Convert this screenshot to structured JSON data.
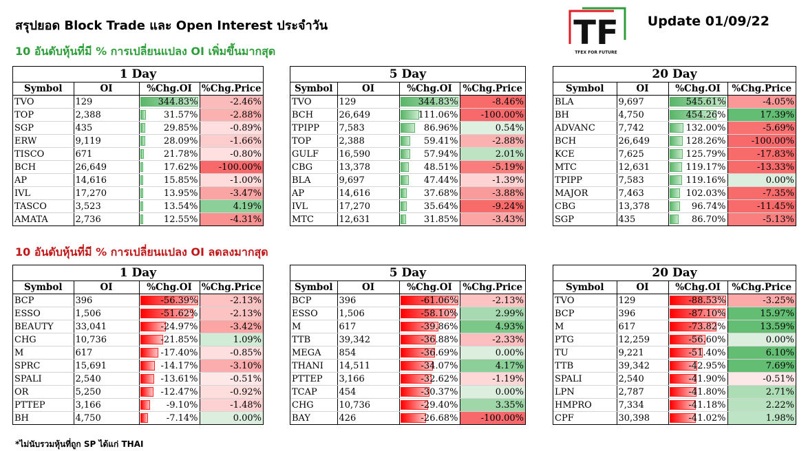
{
  "header": {
    "title": "สรุปยอด Block Trade และ Open Interest ประจำวัน",
    "update": "Update 01/09/22",
    "logo_text": "TF",
    "logo_sub": "TFEX FOR FUTURE"
  },
  "sections": {
    "increase_title": "10 อันดับหุ้นที่มี % การเปลี่ยนแปลง OI เพิ่มขึ้นมากสุด",
    "decrease_title": "10 อันดับหุ้นที่มี % การเปลี่ยนแปลง OI ลดลงมากสุด"
  },
  "columns": {
    "symbol": "Symbol",
    "oi": "OI",
    "chg_oi": "%Chg.OI",
    "chg_price": "%Chg.Price"
  },
  "footnote": "*ไม่นับรวมหุ้นที่ถูก SP ได้แก่ THAI",
  "colors": {
    "green": "#59b668",
    "red": "#ff0000",
    "title_green": "#2e9e3a",
    "title_red": "#c01818"
  },
  "tables": {
    "inc_1d": {
      "title": "1 Day",
      "rows": [
        {
          "symbol": "TVO",
          "oi": "129",
          "chg_oi": "344.83%",
          "chg_oi_value": 344.83,
          "chg_price": "-2.46%",
          "price_value": -2.46
        },
        {
          "symbol": "TOP",
          "oi": "2,388",
          "chg_oi": "31.57%",
          "chg_oi_value": 31.57,
          "chg_price": "-2.88%",
          "price_value": -2.88
        },
        {
          "symbol": "SGP",
          "oi": "435",
          "chg_oi": "29.85%",
          "chg_oi_value": 29.85,
          "chg_price": "-0.89%",
          "price_value": -0.89
        },
        {
          "symbol": "ERW",
          "oi": "9,119",
          "chg_oi": "28.09%",
          "chg_oi_value": 28.09,
          "chg_price": "-1.66%",
          "price_value": -1.66
        },
        {
          "symbol": "TISCO",
          "oi": "671",
          "chg_oi": "21.78%",
          "chg_oi_value": 21.78,
          "chg_price": "-0.80%",
          "price_value": -0.8
        },
        {
          "symbol": "BCH",
          "oi": "26,649",
          "chg_oi": "17.62%",
          "chg_oi_value": 17.62,
          "chg_price": "-100.00%",
          "price_value": -100.0
        },
        {
          "symbol": "AP",
          "oi": "14,616",
          "chg_oi": "15.85%",
          "chg_oi_value": 15.85,
          "chg_price": "-1.00%",
          "price_value": -1.0
        },
        {
          "symbol": "IVL",
          "oi": "17,270",
          "chg_oi": "13.95%",
          "chg_oi_value": 13.95,
          "chg_price": "-3.47%",
          "price_value": -3.47
        },
        {
          "symbol": "TASCO",
          "oi": "3,523",
          "chg_oi": "13.54%",
          "chg_oi_value": 13.54,
          "chg_price": "4.19%",
          "price_value": 4.19
        },
        {
          "symbol": "AMATA",
          "oi": "2,736",
          "chg_oi": "12.55%",
          "chg_oi_value": 12.55,
          "chg_price": "-4.31%",
          "price_value": -4.31
        }
      ]
    },
    "inc_5d": {
      "title": "5 Day",
      "rows": [
        {
          "symbol": "TVO",
          "oi": "129",
          "chg_oi": "344.83%",
          "chg_oi_value": 344.83,
          "chg_price": "-8.46%",
          "price_value": -8.46
        },
        {
          "symbol": "BCH",
          "oi": "26,649",
          "chg_oi": "111.06%",
          "chg_oi_value": 111.06,
          "chg_price": "-100.00%",
          "price_value": -100.0
        },
        {
          "symbol": "TPIPP",
          "oi": "7,583",
          "chg_oi": "86.96%",
          "chg_oi_value": 86.96,
          "chg_price": "0.54%",
          "price_value": 0.54
        },
        {
          "symbol": "TOP",
          "oi": "2,388",
          "chg_oi": "59.41%",
          "chg_oi_value": 59.41,
          "chg_price": "-2.88%",
          "price_value": -2.88
        },
        {
          "symbol": "GULF",
          "oi": "16,590",
          "chg_oi": "57.94%",
          "chg_oi_value": 57.94,
          "chg_price": "2.01%",
          "price_value": 2.01
        },
        {
          "symbol": "CBG",
          "oi": "13,378",
          "chg_oi": "48.51%",
          "chg_oi_value": 48.51,
          "chg_price": "-5.19%",
          "price_value": -5.19
        },
        {
          "symbol": "BLA",
          "oi": "9,697",
          "chg_oi": "47.44%",
          "chg_oi_value": 47.44,
          "chg_price": "-1.39%",
          "price_value": -1.39
        },
        {
          "symbol": "AP",
          "oi": "14,616",
          "chg_oi": "37.68%",
          "chg_oi_value": 37.68,
          "chg_price": "-3.88%",
          "price_value": -3.88
        },
        {
          "symbol": "IVL",
          "oi": "17,270",
          "chg_oi": "35.64%",
          "chg_oi_value": 35.64,
          "chg_price": "-9.24%",
          "price_value": -9.24
        },
        {
          "symbol": "MTC",
          "oi": "12,631",
          "chg_oi": "31.85%",
          "chg_oi_value": 31.85,
          "chg_price": "-3.43%",
          "price_value": -3.43
        }
      ]
    },
    "inc_20d": {
      "title": "20 Day",
      "rows": [
        {
          "symbol": "BLA",
          "oi": "9,697",
          "chg_oi": "545.61%",
          "chg_oi_value": 545.61,
          "chg_price": "-4.05%",
          "price_value": -4.05
        },
        {
          "symbol": "BH",
          "oi": "4,750",
          "chg_oi": "454.26%",
          "chg_oi_value": 454.26,
          "chg_price": "17.39%",
          "price_value": 17.39
        },
        {
          "symbol": "ADVANC",
          "oi": "7,742",
          "chg_oi": "132.00%",
          "chg_oi_value": 132.0,
          "chg_price": "-5.69%",
          "price_value": -5.69
        },
        {
          "symbol": "BCH",
          "oi": "26,649",
          "chg_oi": "128.26%",
          "chg_oi_value": 128.26,
          "chg_price": "-100.00%",
          "price_value": -100.0
        },
        {
          "symbol": "KCE",
          "oi": "7,625",
          "chg_oi": "125.79%",
          "chg_oi_value": 125.79,
          "chg_price": "-17.83%",
          "price_value": -17.83
        },
        {
          "symbol": "MTC",
          "oi": "12,631",
          "chg_oi": "119.17%",
          "chg_oi_value": 119.17,
          "chg_price": "-13.33%",
          "price_value": -13.33
        },
        {
          "symbol": "TPIPP",
          "oi": "7,583",
          "chg_oi": "119.16%",
          "chg_oi_value": 119.16,
          "chg_price": "0.00%",
          "price_value": 0.0
        },
        {
          "symbol": "MAJOR",
          "oi": "7,463",
          "chg_oi": "102.03%",
          "chg_oi_value": 102.03,
          "chg_price": "-7.35%",
          "price_value": -7.35
        },
        {
          "symbol": "CBG",
          "oi": "13,378",
          "chg_oi": "96.74%",
          "chg_oi_value": 96.74,
          "chg_price": "-11.45%",
          "price_value": -11.45
        },
        {
          "symbol": "SGP",
          "oi": "435",
          "chg_oi": "86.70%",
          "chg_oi_value": 86.7,
          "chg_price": "-5.13%",
          "price_value": -5.13
        }
      ]
    },
    "dec_1d": {
      "title": "1 Day",
      "rows": [
        {
          "symbol": "BCP",
          "oi": "396",
          "chg_oi": "-56.39%",
          "chg_oi_value": -56.39,
          "chg_price": "-2.13%",
          "price_value": -2.13
        },
        {
          "symbol": "ESSO",
          "oi": "1,506",
          "chg_oi": "-51.62%",
          "chg_oi_value": -51.62,
          "chg_price": "-2.13%",
          "price_value": -2.13
        },
        {
          "symbol": "BEAUTY",
          "oi": "33,041",
          "chg_oi": "-24.97%",
          "chg_oi_value": -24.97,
          "chg_price": "-3.42%",
          "price_value": -3.42
        },
        {
          "symbol": "CHG",
          "oi": "10,736",
          "chg_oi": "-21.85%",
          "chg_oi_value": -21.85,
          "chg_price": "1.09%",
          "price_value": 1.09
        },
        {
          "symbol": "M",
          "oi": "617",
          "chg_oi": "-17.40%",
          "chg_oi_value": -17.4,
          "chg_price": "-0.85%",
          "price_value": -0.85
        },
        {
          "symbol": "SPRC",
          "oi": "15,691",
          "chg_oi": "-14.17%",
          "chg_oi_value": -14.17,
          "chg_price": "-3.10%",
          "price_value": -3.1
        },
        {
          "symbol": "SPALI",
          "oi": "2,540",
          "chg_oi": "-13.61%",
          "chg_oi_value": -13.61,
          "chg_price": "-0.51%",
          "price_value": -0.51
        },
        {
          "symbol": "OR",
          "oi": "5,250",
          "chg_oi": "-12.47%",
          "chg_oi_value": -12.47,
          "chg_price": "-0.92%",
          "price_value": -0.92
        },
        {
          "symbol": "PTTEP",
          "oi": "3,166",
          "chg_oi": "-9.10%",
          "chg_oi_value": -9.1,
          "chg_price": "-1.48%",
          "price_value": -1.48
        },
        {
          "symbol": "BH",
          "oi": "4,750",
          "chg_oi": "-7.14%",
          "chg_oi_value": -7.14,
          "chg_price": "0.00%",
          "price_value": 0.0
        }
      ]
    },
    "dec_5d": {
      "title": "5 Day",
      "rows": [
        {
          "symbol": "BCP",
          "oi": "396",
          "chg_oi": "-61.06%",
          "chg_oi_value": -61.06,
          "chg_price": "-2.13%",
          "price_value": -2.13
        },
        {
          "symbol": "ESSO",
          "oi": "1,506",
          "chg_oi": "-58.10%",
          "chg_oi_value": -58.1,
          "chg_price": "2.99%",
          "price_value": 2.99
        },
        {
          "symbol": "M",
          "oi": "617",
          "chg_oi": "-39.86%",
          "chg_oi_value": -39.86,
          "chg_price": "4.93%",
          "price_value": 4.93
        },
        {
          "symbol": "TTB",
          "oi": "39,342",
          "chg_oi": "-36.88%",
          "chg_oi_value": -36.88,
          "chg_price": "-2.33%",
          "price_value": -2.33
        },
        {
          "symbol": "MEGA",
          "oi": "854",
          "chg_oi": "-36.69%",
          "chg_oi_value": -36.69,
          "chg_price": "0.00%",
          "price_value": 0.0
        },
        {
          "symbol": "THANI",
          "oi": "14,511",
          "chg_oi": "-34.07%",
          "chg_oi_value": -34.07,
          "chg_price": "4.17%",
          "price_value": 4.17
        },
        {
          "symbol": "PTTEP",
          "oi": "3,166",
          "chg_oi": "-32.62%",
          "chg_oi_value": -32.62,
          "chg_price": "-1.19%",
          "price_value": -1.19
        },
        {
          "symbol": "TCAP",
          "oi": "454",
          "chg_oi": "-30.37%",
          "chg_oi_value": -30.37,
          "chg_price": "0.00%",
          "price_value": 0.0
        },
        {
          "symbol": "CHG",
          "oi": "10,736",
          "chg_oi": "-29.40%",
          "chg_oi_value": -29.4,
          "chg_price": "3.35%",
          "price_value": 3.35
        },
        {
          "symbol": "BAY",
          "oi": "426",
          "chg_oi": "-26.68%",
          "chg_oi_value": -26.68,
          "chg_price": "-100.00%",
          "price_value": -100.0
        }
      ]
    },
    "dec_20d": {
      "title": "20 Day",
      "rows": [
        {
          "symbol": "TVO",
          "oi": "129",
          "chg_oi": "-88.53%",
          "chg_oi_value": -88.53,
          "chg_price": "-3.25%",
          "price_value": -3.25
        },
        {
          "symbol": "BCP",
          "oi": "396",
          "chg_oi": "-87.10%",
          "chg_oi_value": -87.1,
          "chg_price": "15.97%",
          "price_value": 15.97
        },
        {
          "symbol": "M",
          "oi": "617",
          "chg_oi": "-73.82%",
          "chg_oi_value": -73.82,
          "chg_price": "13.59%",
          "price_value": 13.59
        },
        {
          "symbol": "PTG",
          "oi": "12,259",
          "chg_oi": "-56.60%",
          "chg_oi_value": -56.6,
          "chg_price": "0.00%",
          "price_value": 0.0
        },
        {
          "symbol": "TU",
          "oi": "9,221",
          "chg_oi": "-51.40%",
          "chg_oi_value": -51.4,
          "chg_price": "6.10%",
          "price_value": 6.1
        },
        {
          "symbol": "TTB",
          "oi": "39,342",
          "chg_oi": "-42.95%",
          "chg_oi_value": -42.95,
          "chg_price": "7.69%",
          "price_value": 7.69
        },
        {
          "symbol": "SPALI",
          "oi": "2,540",
          "chg_oi": "-41.90%",
          "chg_oi_value": -41.9,
          "chg_price": "-0.51%",
          "price_value": -0.51
        },
        {
          "symbol": "LPN",
          "oi": "2,787",
          "chg_oi": "-41.80%",
          "chg_oi_value": -41.8,
          "chg_price": "2.71%",
          "price_value": 2.71
        },
        {
          "symbol": "HMPRO",
          "oi": "7,334",
          "chg_oi": "-41.18%",
          "chg_oi_value": -41.18,
          "chg_price": "2.22%",
          "price_value": 2.22
        },
        {
          "symbol": "CPF",
          "oi": "30,398",
          "chg_oi": "-41.02%",
          "chg_oi_value": -41.02,
          "chg_price": "1.98%",
          "price_value": 1.98
        }
      ]
    }
  }
}
